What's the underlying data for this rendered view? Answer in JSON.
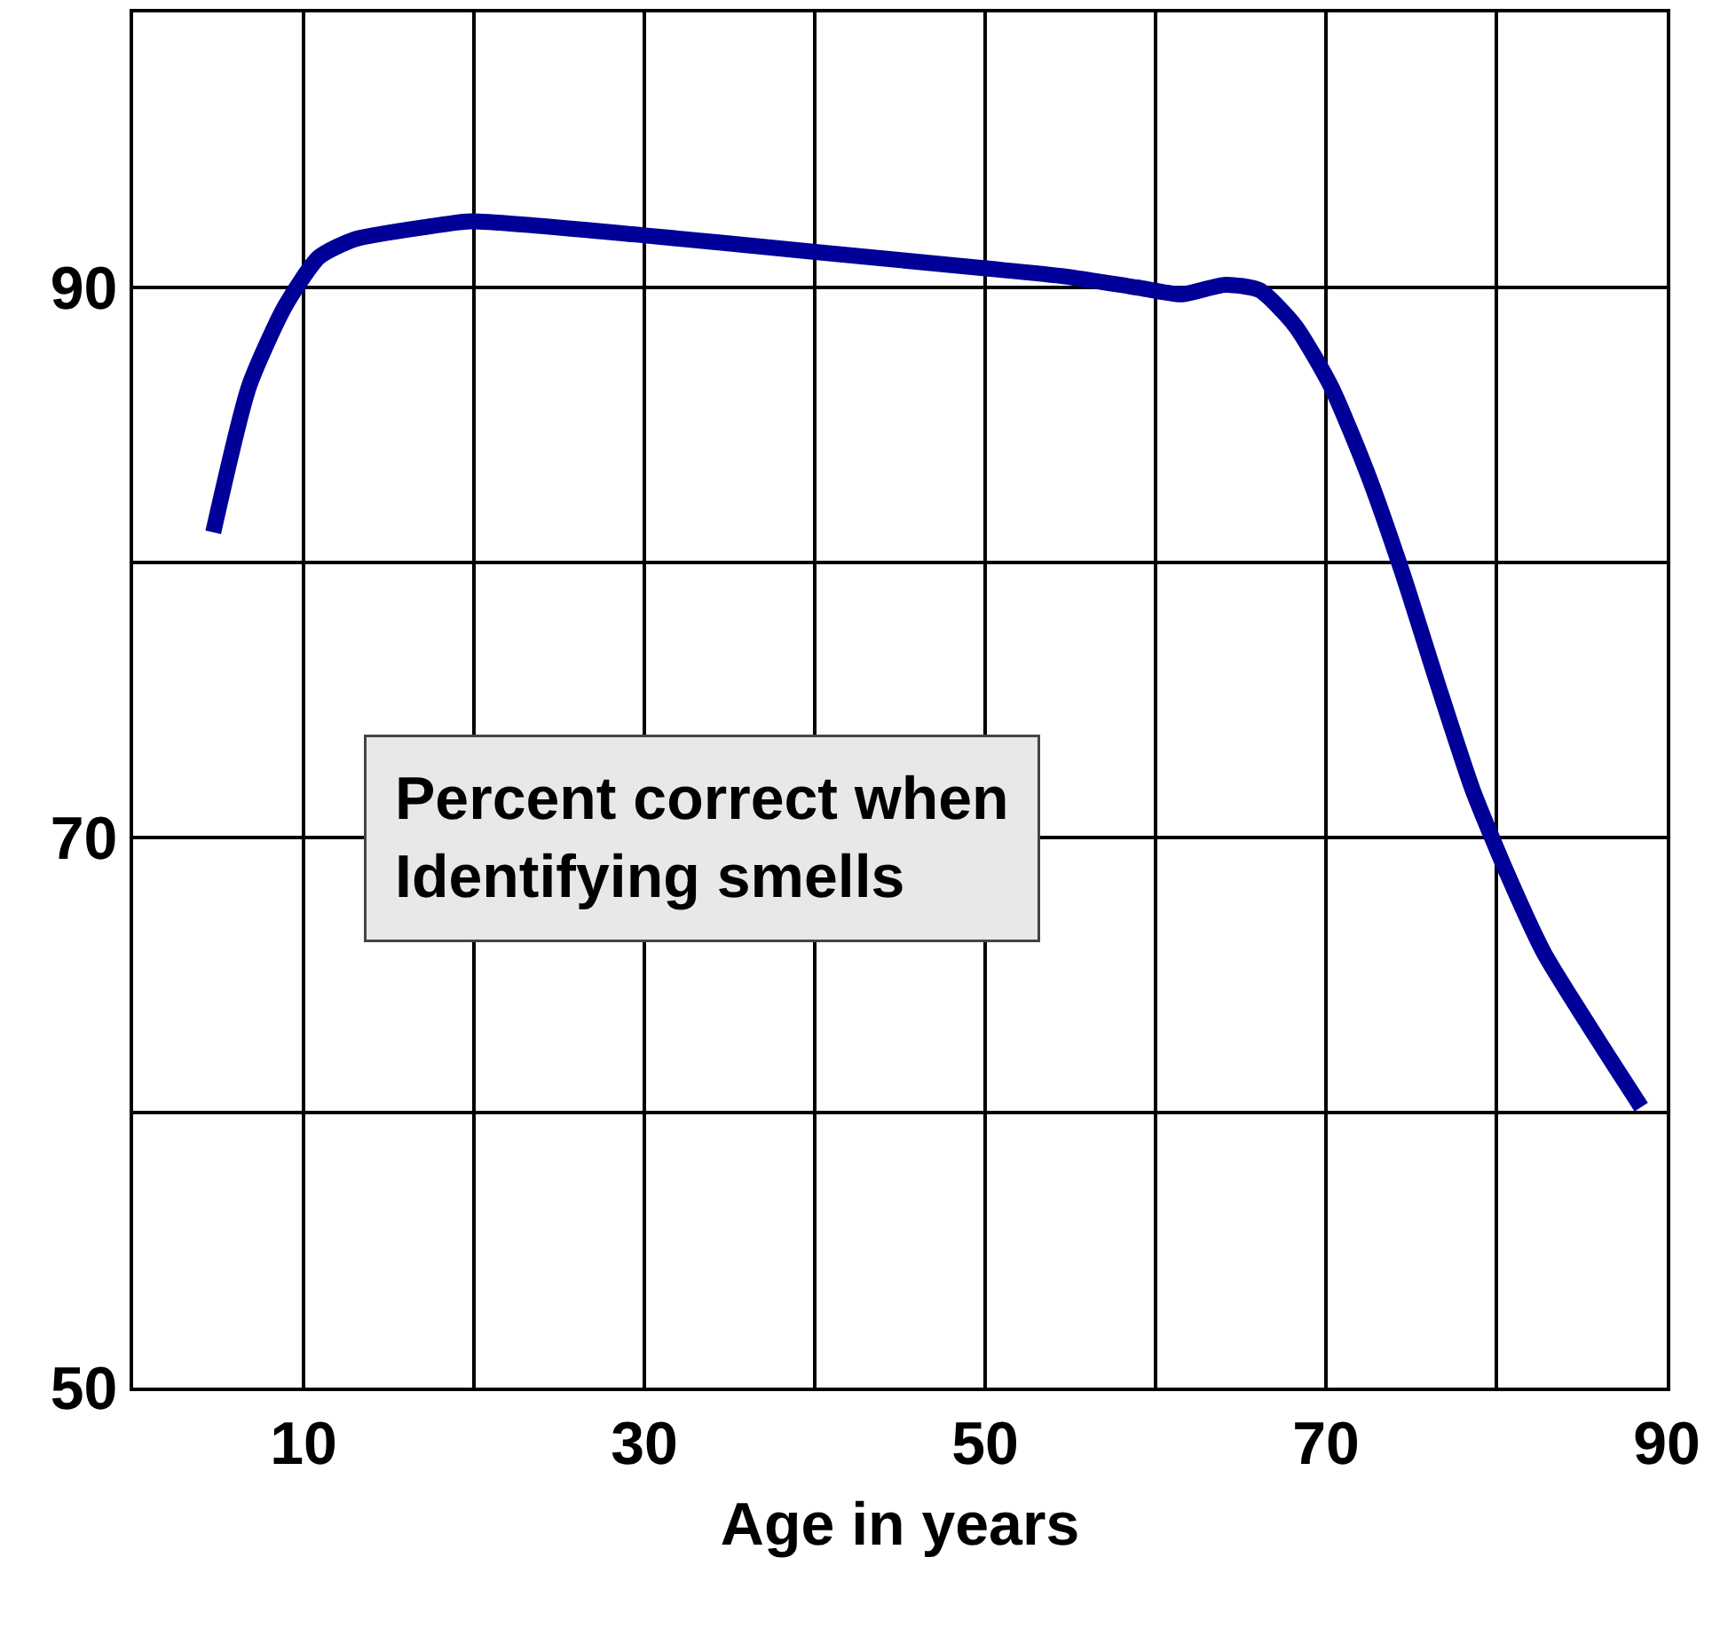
{
  "chart_data": {
    "type": "line",
    "xlabel": "Age in years",
    "annotations": [
      "Percent correct when\nIdentifying smells"
    ],
    "x": [
      4.7,
      6.8,
      8.9,
      10.9,
      13,
      17.2,
      19.8,
      29.9,
      39.9,
      49.9,
      54.7,
      58.9,
      61.5,
      64.1,
      66.1,
      68.2,
      70.3,
      72.4,
      74.5,
      76.6,
      78.6,
      80.7,
      82.8,
      85.9,
      88.5
    ],
    "series": [
      {
        "color": "#000099",
        "values": [
          81.1,
          86.4,
          89.3,
          91.1,
          91.75,
          92.2,
          92.4,
          91.9,
          91.3,
          90.7,
          90.4,
          90.0,
          89.75,
          90.1,
          89.9,
          88.6,
          86.4,
          83.3,
          79.6,
          75.5,
          71.75,
          68.6,
          65.8,
          62.7,
          60.2
        ]
      }
    ],
    "xlim": [
      0,
      90
    ],
    "xticks": [
      {
        "value": 10,
        "label": "10"
      },
      {
        "value": 20,
        "label": null
      },
      {
        "value": 30,
        "label": "30"
      },
      {
        "value": 40,
        "label": null
      },
      {
        "value": 50,
        "label": "50"
      },
      {
        "value": 60,
        "label": null
      },
      {
        "value": 70,
        "label": "70"
      },
      {
        "value": 80,
        "label": null
      },
      {
        "value": 90,
        "label": "90"
      }
    ],
    "ylim": [
      50,
      100
    ],
    "yticks": [
      {
        "value": 50,
        "label": "50"
      },
      {
        "value": 60,
        "label": null
      },
      {
        "value": 70,
        "label": "70"
      },
      {
        "value": 80,
        "label": null
      },
      {
        "value": 90,
        "label": "90"
      }
    ],
    "grid": true,
    "marker": "none",
    "line_style": "solid"
  }
}
